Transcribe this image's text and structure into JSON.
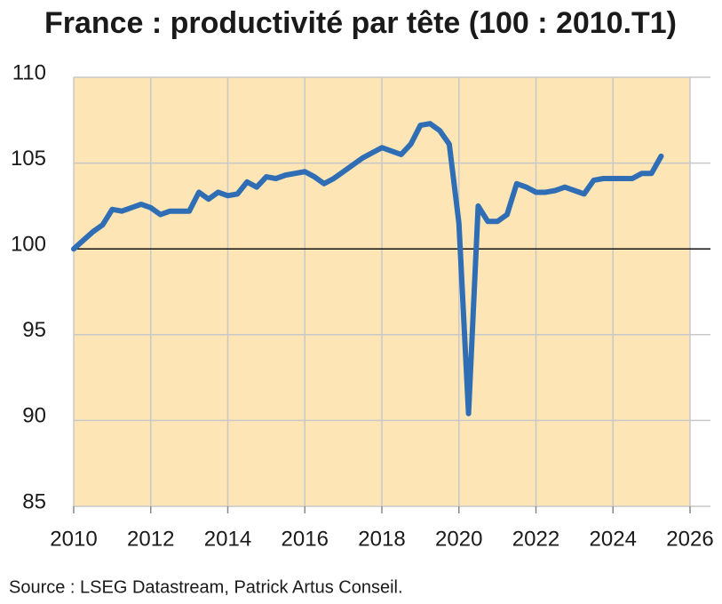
{
  "chart_data": {
    "type": "line",
    "title": "France : productivité par tête (100 : 2010.T1)",
    "source": "Source : LSEG Datastream, Patrick Artus Conseil.",
    "x": [
      2010,
      2010.25,
      2010.5,
      2010.75,
      2011,
      2011.25,
      2011.5,
      2011.75,
      2012,
      2012.25,
      2012.5,
      2012.75,
      2013,
      2013.25,
      2013.5,
      2013.75,
      2014,
      2014.25,
      2014.5,
      2014.75,
      2015,
      2015.25,
      2015.5,
      2015.75,
      2016,
      2016.25,
      2016.5,
      2016.75,
      2017,
      2017.25,
      2017.5,
      2017.75,
      2018,
      2018.25,
      2018.5,
      2018.75,
      2019,
      2019.25,
      2019.5,
      2019.75,
      2020,
      2020.25,
      2020.5,
      2020.75,
      2021,
      2021.25,
      2021.5,
      2021.75,
      2022,
      2022.25,
      2022.5,
      2022.75,
      2023,
      2023.25,
      2023.5,
      2023.75,
      2024,
      2024.25,
      2024.5,
      2024.75,
      2025,
      2025.25
    ],
    "series": [
      {
        "color": "#2f6db5",
        "values": [
          100,
          100.5,
          101,
          101.4,
          102.3,
          102.2,
          102.4,
          102.6,
          102.4,
          102,
          102.2,
          102.2,
          102.2,
          103.3,
          102.9,
          103.3,
          103.1,
          103.2,
          103.9,
          103.6,
          104.2,
          104.1,
          104.3,
          104.4,
          104.5,
          104.2,
          103.8,
          104.1,
          104.5,
          104.9,
          105.3,
          105.6,
          105.9,
          105.7,
          105.5,
          106.1,
          107.2,
          107.3,
          106.9,
          106.1,
          101.5,
          90.4,
          102.5,
          101.6,
          101.6,
          102,
          103.8,
          103.6,
          103.3,
          103.3,
          103.4,
          103.6,
          103.4,
          103.2,
          104,
          104.1,
          104.1,
          104.1,
          104.1,
          104.4,
          104.4,
          105.4
        ]
      }
    ],
    "xlim": [
      2010,
      2026
    ],
    "xticks": [
      2010,
      2012,
      2014,
      2016,
      2018,
      2020,
      2022,
      2024,
      2026
    ],
    "ylim": [
      85,
      110
    ],
    "yticks": [
      85,
      90,
      95,
      100,
      105,
      110
    ],
    "reference_line": 100,
    "grid": true,
    "background": "#fde5b6"
  }
}
